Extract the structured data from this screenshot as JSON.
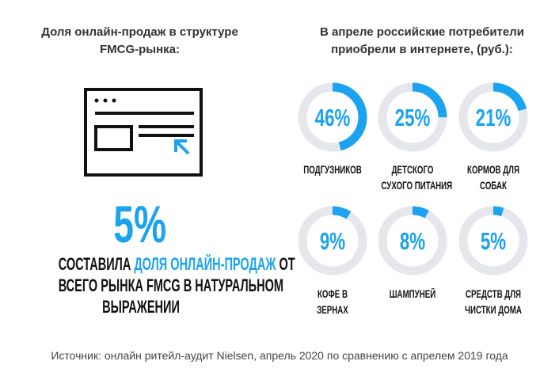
{
  "left": {
    "title_l1": "Доля онлайн-продаж в структуре",
    "title_l2": "FMCG-рынка:",
    "value": "5%",
    "desc_l1_a": "СОСТАВИЛА ",
    "desc_l1_b": "ДОЛЯ ОНЛАЙН-ПРОДАЖ",
    "desc_l1_c": " ОТ",
    "desc_l2": "ВСЕГО РЫНКА FMCG В НАТУРАЛЬНОМ",
    "desc_l3": "ВЫРАЖЕНИИ",
    "icon": "browser-window-cursor-icon"
  },
  "right": {
    "title_l1": "В апреле российские потребители",
    "title_l2": "приобрели в интернете, (руб.):"
  },
  "source": "Источник: онлайн ритейл-аудит Nielsen, апрель 2020 по сравнению с апрелем 2019 года",
  "colors": {
    "accent": "#1ba3ef",
    "track": "#e6e7ec"
  },
  "chart_data": {
    "type": "pie",
    "subtype": "donut",
    "title": "В апреле российские потребители приобрели в интернете, (руб.):",
    "items": [
      {
        "label_lines": [
          "ПОДГУЗНИКОВ"
        ],
        "value": 46,
        "text": "46%"
      },
      {
        "label_lines": [
          "ДЕТСКОГО",
          "СУХОГО ПИТАНИЯ"
        ],
        "value": 25,
        "text": "25%"
      },
      {
        "label_lines": [
          "КОРМОВ ДЛЯ",
          "СОБАК"
        ],
        "value": 21,
        "text": "21%"
      },
      {
        "label_lines": [
          "КОФЕ В",
          "ЗЕРНАХ"
        ],
        "value": 9,
        "text": "9%"
      },
      {
        "label_lines": [
          "ШАМПУНЕЙ"
        ],
        "value": 8,
        "text": "8%"
      },
      {
        "label_lines": [
          "СРЕДСТВ ДЛЯ",
          "ЧИСТКИ ДОМА"
        ],
        "value": 5,
        "text": "5%"
      }
    ]
  }
}
